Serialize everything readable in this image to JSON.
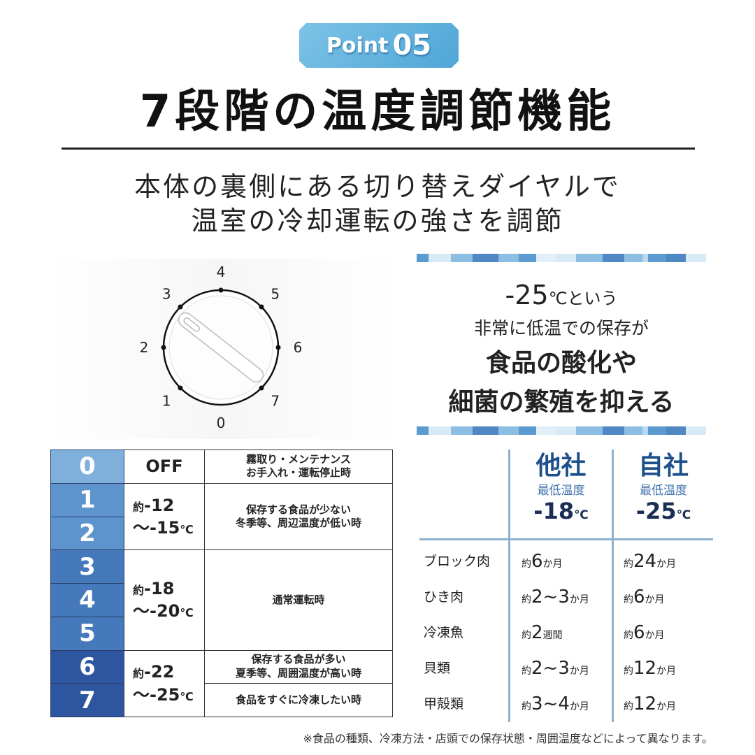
{
  "badge": {
    "point": "Point",
    "number": "05"
  },
  "title": "7段階の温度調節機能",
  "subtitle": [
    "本体の裏側にある切り替えダイヤルで",
    "温室の冷却運転の強さを調節"
  ],
  "dial": {
    "labels": [
      "0",
      "1",
      "2",
      "3",
      "4",
      "5",
      "6",
      "7"
    ]
  },
  "promo": {
    "temp": "-25",
    "unit": "℃という",
    "line2": "非常に低温での保存が",
    "line3": "食品の酸化や",
    "line4": "細菌の繁殖を抑える"
  },
  "settings": {
    "levels": [
      {
        "n": "0",
        "color": "#7fb0dc"
      },
      {
        "n": "1",
        "color": "#5d94cd"
      },
      {
        "n": "2",
        "color": "#5d94cd"
      },
      {
        "n": "3",
        "color": "#4579bb"
      },
      {
        "n": "4",
        "color": "#4579bb"
      },
      {
        "n": "5",
        "color": "#4579bb"
      },
      {
        "n": "6",
        "color": "#2e55a0"
      },
      {
        "n": "7",
        "color": "#2e55a0"
      }
    ],
    "off": "OFF",
    "off_desc": [
      "霧取り・メンテナンス",
      "お手入れ・運転停止時"
    ],
    "ranges": [
      {
        "prefix": "約",
        "a": "-12",
        "b": "～-15",
        "unit": "℃",
        "desc": [
          "保存する食品が少ない",
          "冬季等、周辺温度が低い時"
        ]
      },
      {
        "prefix": "約",
        "a": "-18",
        "b": "～-20",
        "unit": "℃",
        "desc": [
          "通常運転時"
        ]
      },
      {
        "prefix": "約",
        "a": "-22",
        "b": "～-25",
        "unit": "℃",
        "desc": [
          "保存する食品が多い",
          "夏季等、周囲温度が高い時"
        ],
        "desc2": "食品をすぐに冷凍したい時"
      }
    ]
  },
  "comparison": {
    "columns": [
      {
        "company": "他社",
        "label": "最低温度",
        "temp": "-18",
        "unit": "℃"
      },
      {
        "company": "自社",
        "label": "最低温度",
        "temp": "-25",
        "unit": "℃"
      }
    ],
    "rows": [
      {
        "food": "ブロック肉",
        "other": [
          "約",
          "6",
          "か月"
        ],
        "ours": [
          "約",
          "24",
          "か月"
        ]
      },
      {
        "food": "ひき肉",
        "other": [
          "約",
          "2~3",
          "か月"
        ],
        "ours": [
          "約",
          "6",
          "か月"
        ]
      },
      {
        "food": "冷凍魚",
        "other": [
          "約",
          "2",
          "週間"
        ],
        "ours": [
          "約",
          "6",
          "か月"
        ]
      },
      {
        "food": "貝類",
        "other": [
          "約",
          "2~3",
          "か月"
        ],
        "ours": [
          "約",
          "12",
          "か月"
        ]
      },
      {
        "food": "甲殻類",
        "other": [
          "約",
          "3~4",
          "か月"
        ],
        "ours": [
          "約",
          "12",
          "か月"
        ]
      }
    ]
  },
  "footnote": "※食品の種類、冷凍方法・店頭での保存状態・周囲温度などによって異なります。"
}
